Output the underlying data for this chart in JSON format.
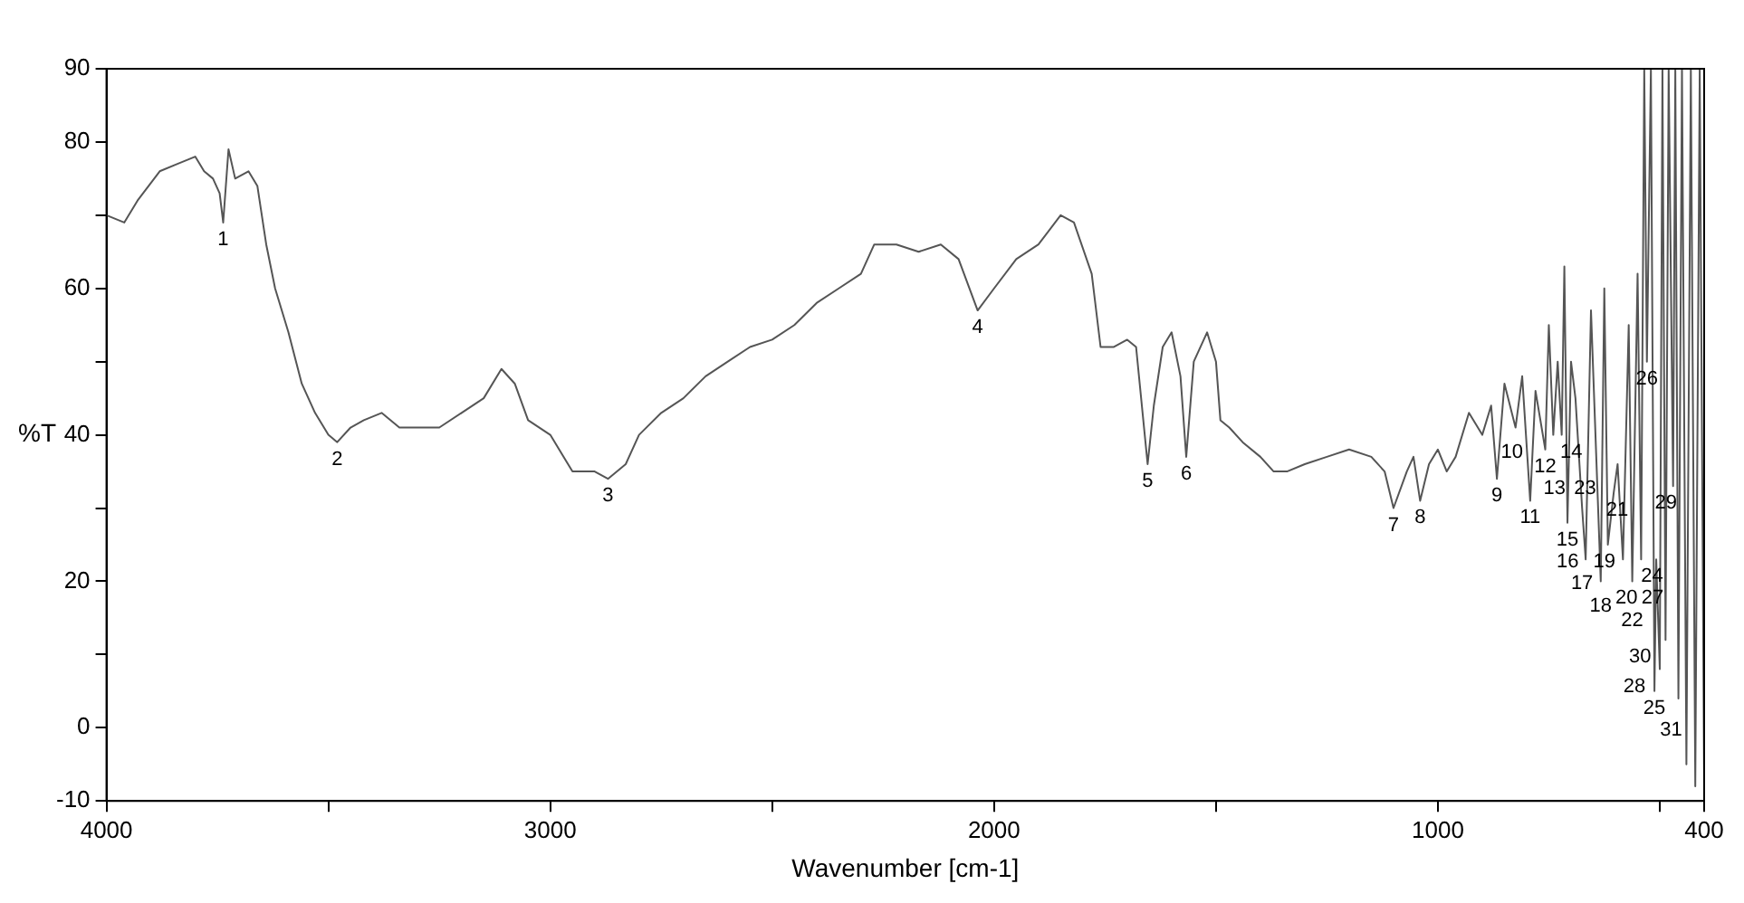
{
  "chart_data": {
    "type": "line",
    "xlabel": "Wavenumber [cm-1]",
    "ylabel": "%T",
    "xlim": [
      4000,
      400
    ],
    "xticks": [
      4000,
      {
        "value": 3500,
        "label": null
      },
      3000,
      {
        "value": 2500,
        "label": null
      },
      2000,
      {
        "value": 1500,
        "label": null
      },
      1000,
      {
        "value": 500,
        "label": null
      },
      400
    ],
    "ylim": [
      -10,
      90
    ],
    "yticks": [
      -10,
      0,
      {
        "value": 10,
        "label": null
      },
      20,
      {
        "value": 30,
        "label": null
      },
      40,
      {
        "value": 50,
        "label": null
      },
      60,
      {
        "value": 70,
        "label": null
      },
      80,
      90
    ],
    "grid": false,
    "marker": "none",
    "line_style": "solid",
    "series": [
      {
        "color": "#555555",
        "x": [
          4000,
          3960,
          3930,
          3880,
          3840,
          3800,
          3780,
          3760,
          3745,
          3737,
          3725,
          3710,
          3680,
          3660,
          3640,
          3620,
          3590,
          3560,
          3530,
          3500,
          3480,
          3450,
          3420,
          3380,
          3340,
          3300,
          3250,
          3200,
          3150,
          3110,
          3080,
          3050,
          3000,
          2950,
          2900,
          2870,
          2830,
          2800,
          2750,
          2700,
          2650,
          2600,
          2550,
          2500,
          2450,
          2400,
          2350,
          2300,
          2270,
          2220,
          2170,
          2120,
          2080,
          2037,
          2000,
          1950,
          1900,
          1850,
          1820,
          1780,
          1760,
          1730,
          1700,
          1680,
          1654,
          1640,
          1620,
          1600,
          1580,
          1567,
          1550,
          1520,
          1500,
          1490,
          1470,
          1440,
          1400,
          1370,
          1340,
          1300,
          1250,
          1200,
          1150,
          1120,
          1100,
          1070,
          1055,
          1040,
          1020,
          1000,
          980,
          960,
          930,
          900,
          880,
          867,
          850,
          825,
          810,
          792,
          780,
          758,
          750,
          740,
          730,
          721,
          715,
          708,
          700,
          690,
          675,
          667,
          655,
          633,
          625,
          617,
          604,
          595,
          583,
          570,
          562,
          550,
          542,
          535,
          529,
          520,
          512,
          508,
          500,
          494,
          487,
          480,
          470,
          465,
          458,
          450,
          440,
          430,
          420,
          410,
          400
        ],
        "values": [
          70,
          69,
          72,
          76,
          77,
          78,
          76,
          75,
          73,
          69,
          79,
          75,
          76,
          74,
          66,
          60,
          54,
          47,
          43,
          40,
          39,
          41,
          42,
          43,
          41,
          41,
          41,
          43,
          45,
          49,
          47,
          42,
          40,
          35,
          35,
          34,
          36,
          40,
          43,
          45,
          48,
          50,
          52,
          53,
          55,
          58,
          60,
          62,
          66,
          66,
          65,
          66,
          64,
          57,
          60,
          64,
          66,
          70,
          69,
          62,
          52,
          52,
          53,
          52,
          36,
          44,
          52,
          54,
          48,
          37,
          50,
          54,
          50,
          42,
          41,
          39,
          37,
          35,
          35,
          36,
          37,
          38,
          37,
          35,
          30,
          35,
          37,
          31,
          36,
          38,
          35,
          37,
          43,
          40,
          44,
          34,
          47,
          41,
          48,
          31,
          46,
          38,
          55,
          40,
          50,
          40,
          63,
          28,
          50,
          45,
          30,
          23,
          57,
          20,
          60,
          25,
          32,
          36,
          23,
          55,
          20,
          62,
          23,
          90,
          50,
          90,
          5,
          23,
          8,
          90,
          12,
          90,
          33,
          90,
          4,
          90,
          -5,
          90,
          -8,
          90,
          -8
        ]
      }
    ],
    "annotations": [
      {
        "text": "1",
        "x": 3737,
        "y": 69
      },
      {
        "text": "2",
        "x": 3480,
        "y": 39
      },
      {
        "text": "3",
        "x": 2870,
        "y": 34
      },
      {
        "text": "4",
        "x": 2037,
        "y": 57
      },
      {
        "text": "5",
        "x": 1654,
        "y": 36
      },
      {
        "text": "6",
        "x": 1567,
        "y": 37
      },
      {
        "text": "7",
        "x": 1100,
        "y": 30
      },
      {
        "text": "8",
        "x": 1040,
        "y": 31
      },
      {
        "text": "9",
        "x": 867,
        "y": 34
      },
      {
        "text": "10",
        "x": 825,
        "y": 41
      },
      {
        "text": "11",
        "x": 792,
        "y": 31
      },
      {
        "text": "12",
        "x": 758,
        "y": 38
      },
      {
        "text": "13",
        "x": 721,
        "y": 40
      },
      {
        "text": "14",
        "x": 740,
        "y": 40
      },
      {
        "text": "15",
        "x": 708,
        "y": 28
      },
      {
        "text": "16",
        "x": 675,
        "y": 30
      },
      {
        "text": "17",
        "x": 667,
        "y": 23
      },
      {
        "text": "18",
        "x": 633,
        "y": 20
      },
      {
        "text": "19",
        "x": 617,
        "y": 25
      },
      {
        "text": "20",
        "x": 583,
        "y": 23
      },
      {
        "text": "21",
        "x": 604,
        "y": 32
      },
      {
        "text": "22",
        "x": 562,
        "y": 20
      },
      {
        "text": "23",
        "x": 595,
        "y": 36
      },
      {
        "text": "24",
        "x": 542,
        "y": 23
      },
      {
        "text": "25",
        "x": 512,
        "y": 5
      },
      {
        "text": "26",
        "x": 529,
        "y": 50
      },
      {
        "text": "27",
        "x": 508,
        "y": 23
      },
      {
        "text": "28",
        "x": 500,
        "y": 8
      },
      {
        "text": "29",
        "x": 470,
        "y": 33
      },
      {
        "text": "30",
        "x": 487,
        "y": 12
      },
      {
        "text": "31",
        "x": 458,
        "y": 4
      }
    ]
  }
}
